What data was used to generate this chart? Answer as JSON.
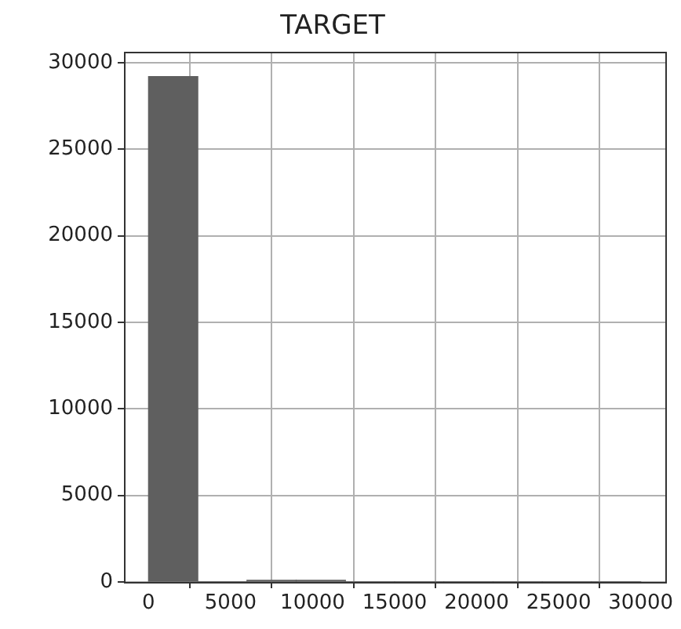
{
  "chart_data": {
    "type": "histogram",
    "title": "TARGET",
    "bins": [
      0,
      3000,
      6000,
      9000,
      12000,
      15000,
      18000,
      21000,
      24000,
      27000,
      30000
    ],
    "values": [
      29200,
      0,
      100,
      100,
      0,
      0,
      0,
      0,
      0,
      0
    ],
    "color": "#5f5f5f",
    "xlim": [
      -1500,
      31500
    ],
    "xticks": [
      0,
      5000,
      10000,
      15000,
      20000,
      25000,
      30000
    ],
    "ylim": [
      0,
      30600
    ],
    "yticks": [
      0,
      5000,
      10000,
      15000,
      20000,
      25000,
      30000
    ],
    "grid": true
  }
}
